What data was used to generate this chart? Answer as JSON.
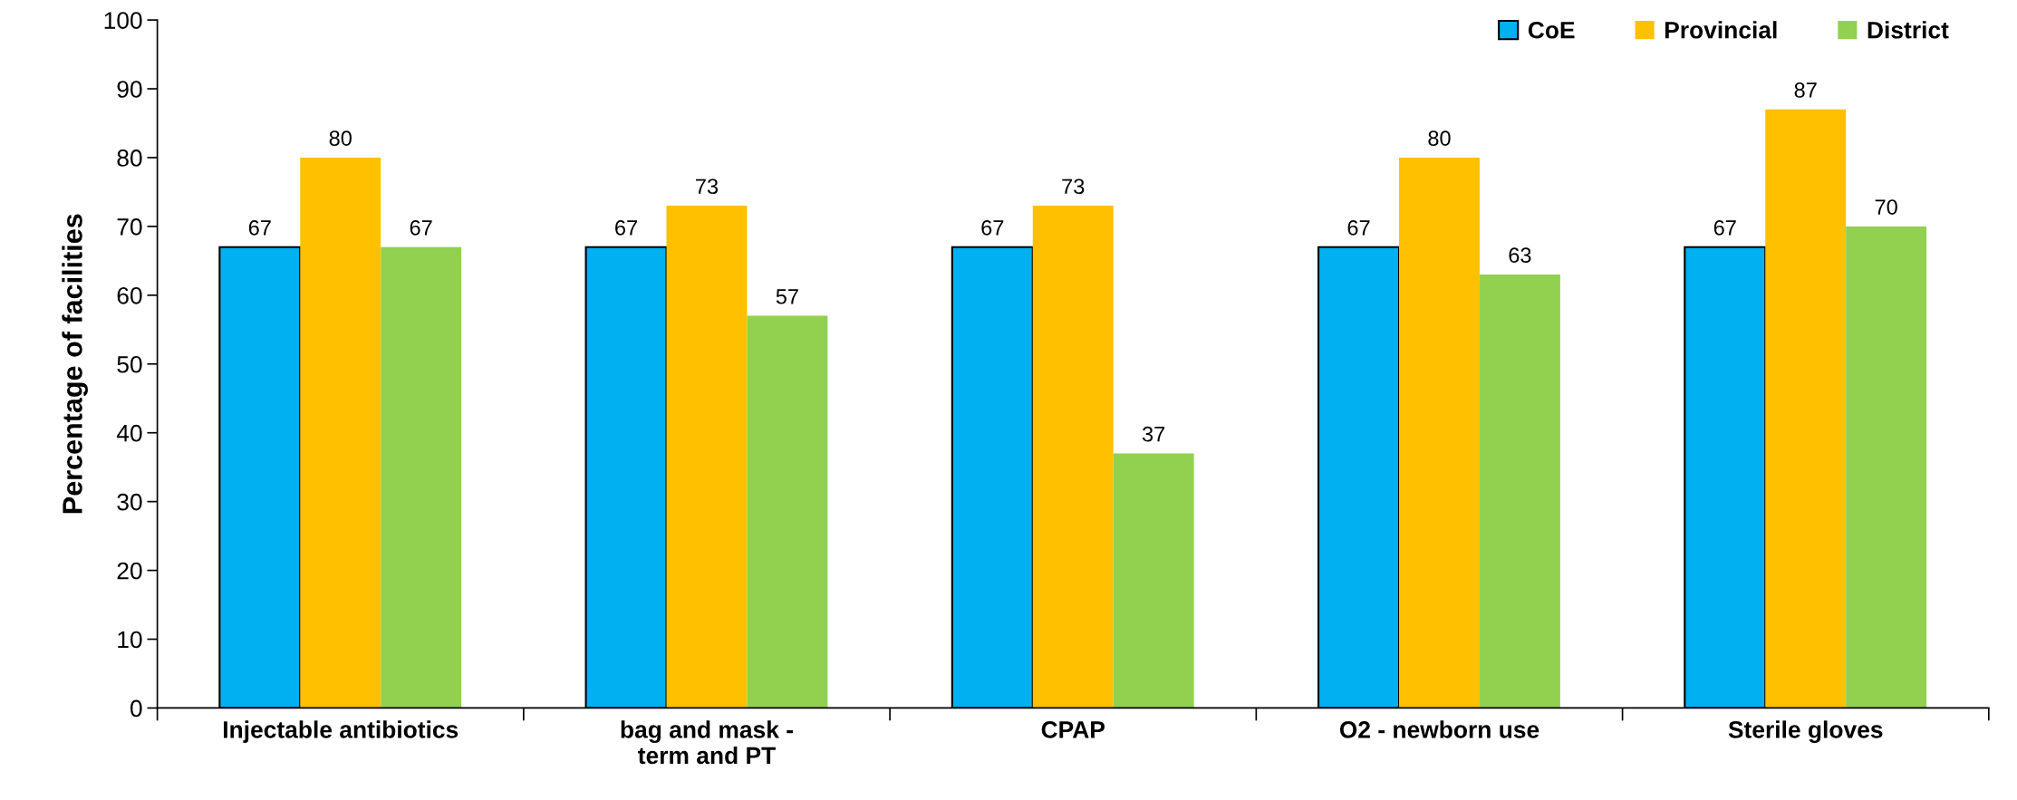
{
  "chart_data": {
    "type": "bar",
    "ylabel": "Percentage of facilities",
    "categories": [
      "Injectable antibiotics",
      "bag and mask -\nterm and PT",
      "CPAP",
      "O2 - newborn use",
      "Sterile gloves"
    ],
    "series": [
      {
        "name": "CoE",
        "color": "#00b0f0",
        "values": [
          67,
          67,
          67,
          67,
          67
        ]
      },
      {
        "name": "Provincial",
        "color": "#ffc000",
        "values": [
          80,
          73,
          73,
          80,
          87
        ]
      },
      {
        "name": "District",
        "color": "#92d050",
        "values": [
          67,
          57,
          37,
          63,
          70
        ]
      }
    ],
    "ylim": [
      0,
      100
    ],
    "yticks": [
      0,
      10,
      20,
      30,
      40,
      50,
      60,
      70,
      80,
      90,
      100
    ],
    "data_labels": true,
    "legend": "top right",
    "grid": false
  }
}
